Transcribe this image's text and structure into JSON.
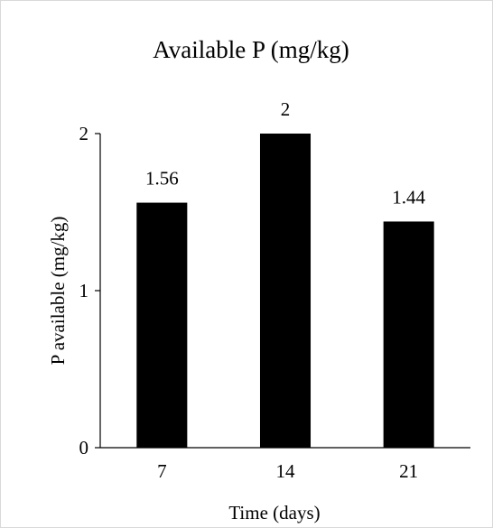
{
  "chart_data": {
    "type": "bar",
    "title": "Available P (mg/kg)",
    "xlabel": "Time (days)",
    "ylabel": "P available (mg/kg)",
    "categories": [
      "7",
      "14",
      "21"
    ],
    "values": [
      1.56,
      2,
      1.44
    ],
    "data_labels": [
      "1.56",
      "2",
      "1.44"
    ],
    "ylim": [
      0,
      2
    ],
    "yticks": [
      0,
      1,
      2
    ],
    "ytick_labels": [
      "0",
      "1",
      "2"
    ],
    "grid": false,
    "legend": "none",
    "bar_color": "#000000",
    "axis_color": "#000000",
    "border_color": "#d9d9d9"
  }
}
